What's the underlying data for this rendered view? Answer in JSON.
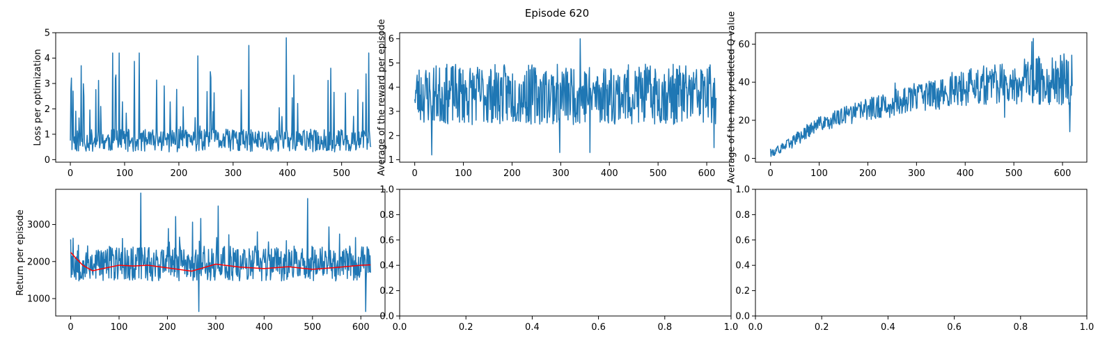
{
  "title": "Episode 620",
  "colors": {
    "primary_series": "#1f77b4",
    "moving_average": "#ff0000",
    "axes": "#000000"
  },
  "chart_data": [
    {
      "type": "line",
      "ylabel": "Loss per optimization",
      "xlim": [
        -27,
        580
      ],
      "ylim": [
        -0.1,
        5.0
      ],
      "xticks": [
        0,
        100,
        200,
        300,
        400,
        500
      ],
      "yticks": [
        0,
        1,
        2,
        3,
        4,
        5
      ],
      "series": [
        {
          "kind": "noisy",
          "color": "#1f77b4",
          "n": 555,
          "x_start": 0,
          "x_end": 554,
          "base": 0.75,
          "amp": 0.45,
          "spike_every": 9,
          "spike_max": 3.0,
          "min": 0.1,
          "max": 4.8,
          "seed": 11,
          "peaks": [
            [
              0,
              0.75
            ],
            [
              5,
              2.7
            ],
            [
              20,
              3.7
            ],
            [
              78,
              4.2
            ],
            [
              90,
              4.2
            ],
            [
              127,
              4.2
            ],
            [
              329,
              4.5
            ],
            [
              398,
              4.8
            ],
            [
              480,
              3.6
            ],
            [
              550,
              4.2
            ],
            [
              554,
              0.5
            ]
          ]
        }
      ]
    },
    {
      "type": "line",
      "ylabel": "Average of the reward per episode",
      "xlim": [
        -31,
        650
      ],
      "ylim": [
        0.9,
        6.25
      ],
      "xticks": [
        0,
        100,
        200,
        300,
        400,
        500,
        600
      ],
      "yticks": [
        1,
        2,
        3,
        4,
        5,
        6
      ],
      "series": [
        {
          "kind": "noisy",
          "color": "#1f77b4",
          "n": 621,
          "x_start": 0,
          "x_end": 620,
          "base": 3.7,
          "amp": 1.25,
          "spike_every": 0,
          "spike_max": 0,
          "min": 1.2,
          "max": 6.0,
          "seed": 23,
          "peaks": [
            [
              0,
              3.5
            ],
            [
              35,
              1.2
            ],
            [
              298,
              1.3
            ],
            [
              340,
              6.0
            ],
            [
              360,
              1.3
            ],
            [
              615,
              1.5
            ],
            [
              620,
              3.5
            ]
          ]
        }
      ]
    },
    {
      "type": "line",
      "ylabel": "Average of the max predicted Q value",
      "xlim": [
        -31,
        650
      ],
      "ylim": [
        -2,
        66
      ],
      "xticks": [
        0,
        100,
        200,
        300,
        400,
        500,
        600
      ],
      "yticks": [
        0,
        20,
        40,
        60
      ],
      "series": [
        {
          "kind": "trend",
          "color": "#1f77b4",
          "n": 621,
          "x_start": 0,
          "x_end": 620,
          "trend": [
            [
              0,
              4
            ],
            [
              10,
              3
            ],
            [
              50,
              10
            ],
            [
              100,
              18
            ],
            [
              200,
              26
            ],
            [
              300,
              32
            ],
            [
              400,
              37
            ],
            [
              500,
              40
            ],
            [
              620,
              42
            ]
          ],
          "amp_start": 2,
          "amp_end": 14,
          "min": 1,
          "max": 63,
          "seed": 37,
          "peaks": [
            [
              0,
              5
            ],
            [
              8,
              1.5
            ],
            [
              540,
              63
            ],
            [
              615,
              14
            ],
            [
              620,
              38
            ]
          ]
        }
      ]
    },
    {
      "type": "line",
      "ylabel": "Return per episode",
      "xlim": [
        -31,
        650
      ],
      "ylim": [
        530,
        3950
      ],
      "xticks": [
        0,
        100,
        200,
        300,
        400,
        500,
        600
      ],
      "yticks": [
        1000,
        2000,
        3000
      ],
      "series": [
        {
          "kind": "noisy",
          "color": "#1f77b4",
          "n": 621,
          "x_start": 0,
          "x_end": 620,
          "base": 1950,
          "amp": 480,
          "spike_every": 14,
          "spike_max": 900,
          "min": 650,
          "max": 3850,
          "seed": 53,
          "peaks": [
            [
              0,
              2600
            ],
            [
              145,
              3850
            ],
            [
              265,
              650
            ],
            [
              305,
              3500
            ],
            [
              490,
              3700
            ],
            [
              610,
              650
            ],
            [
              620,
              1700
            ]
          ]
        },
        {
          "kind": "smooth",
          "color": "#ff0000",
          "x_start": 0,
          "x_end": 620,
          "points": [
            [
              0,
              2250
            ],
            [
              10,
              2100
            ],
            [
              25,
              1900
            ],
            [
              45,
              1750
            ],
            [
              70,
              1820
            ],
            [
              100,
              1900
            ],
            [
              130,
              1880
            ],
            [
              160,
              1900
            ],
            [
              200,
              1830
            ],
            [
              250,
              1740
            ],
            [
              300,
              1930
            ],
            [
              350,
              1850
            ],
            [
              400,
              1810
            ],
            [
              450,
              1860
            ],
            [
              500,
              1790
            ],
            [
              550,
              1840
            ],
            [
              600,
              1900
            ],
            [
              620,
              1910
            ]
          ]
        }
      ]
    },
    {
      "type": "empty",
      "ylabel": "",
      "xlim": [
        0,
        1
      ],
      "ylim": [
        0,
        1
      ],
      "xticks": [
        0.0,
        0.2,
        0.4,
        0.6,
        0.8,
        1.0
      ],
      "yticks": [
        0.0,
        0.2,
        0.4,
        0.6,
        0.8,
        1.0
      ],
      "tick_labels": [
        "0.0",
        "0.2",
        "0.4",
        "0.6",
        "0.8",
        "1.0"
      ],
      "series": []
    },
    {
      "type": "empty",
      "ylabel": "",
      "xlim": [
        0,
        1
      ],
      "ylim": [
        0,
        1
      ],
      "xticks": [
        0.0,
        0.2,
        0.4,
        0.6,
        0.8,
        1.0
      ],
      "yticks": [
        0.0,
        0.2,
        0.4,
        0.6,
        0.8,
        1.0
      ],
      "tick_labels": [
        "0.0",
        "0.2",
        "0.4",
        "0.6",
        "0.8",
        "1.0"
      ],
      "series": []
    }
  ]
}
